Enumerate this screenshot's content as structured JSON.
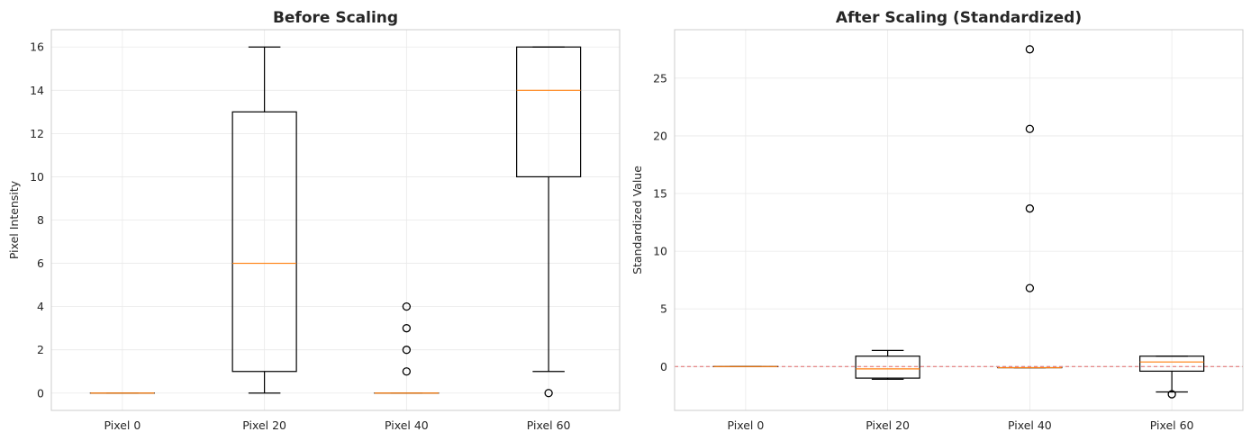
{
  "chart_data": [
    {
      "type": "box",
      "title": "Before Scaling",
      "xlabel": "",
      "ylabel": "Pixel Intensity",
      "categories": [
        "Pixel 0",
        "Pixel 20",
        "Pixel 40",
        "Pixel 60"
      ],
      "ylim": [
        -0.8,
        16.8
      ],
      "yticks": [
        0,
        2,
        4,
        6,
        8,
        10,
        12,
        14,
        16
      ],
      "grid": true,
      "boxes": [
        {
          "whislo": 0,
          "q1": 0,
          "med": 0,
          "q3": 0,
          "whishi": 0,
          "fliers": []
        },
        {
          "whislo": 0,
          "q1": 1,
          "med": 6,
          "q3": 13,
          "whishi": 16,
          "fliers": []
        },
        {
          "whislo": 0,
          "q1": 0,
          "med": 0,
          "q3": 0,
          "whishi": 0,
          "fliers": [
            1,
            2,
            3,
            4
          ]
        },
        {
          "whislo": 1,
          "q1": 10,
          "med": 14,
          "q3": 16,
          "whishi": 16,
          "fliers": [
            0
          ]
        }
      ],
      "reference_line": null
    },
    {
      "type": "box",
      "title": "After Scaling (Standardized)",
      "xlabel": "",
      "ylabel": "Standardized Value",
      "categories": [
        "Pixel 0",
        "Pixel 20",
        "Pixel 40",
        "Pixel 60"
      ],
      "ylim": [
        -3.8,
        29.2
      ],
      "yticks": [
        0,
        5,
        10,
        15,
        20,
        25
      ],
      "grid": true,
      "boxes": [
        {
          "whislo": 0,
          "q1": 0,
          "med": 0,
          "q3": 0,
          "whishi": 0,
          "fliers": []
        },
        {
          "whislo": -1.1,
          "q1": -1.0,
          "med": -0.2,
          "q3": 0.9,
          "whishi": 1.4,
          "fliers": []
        },
        {
          "whislo": -0.1,
          "q1": -0.1,
          "med": -0.1,
          "q3": -0.1,
          "whishi": -0.1,
          "fliers": [
            6.8,
            13.7,
            20.6,
            27.5
          ]
        },
        {
          "whislo": -2.2,
          "q1": -0.4,
          "med": 0.4,
          "q3": 0.9,
          "whishi": 0.9,
          "fliers": [
            -2.4
          ]
        }
      ],
      "reference_line": {
        "y": 0,
        "style": "dashed",
        "color": "#e06666"
      }
    }
  ],
  "colors": {
    "box": "#000000",
    "median": "#ff7f0e",
    "grid": "#e9e9e9",
    "spine": "#cccccc",
    "reference": "#e06666"
  }
}
